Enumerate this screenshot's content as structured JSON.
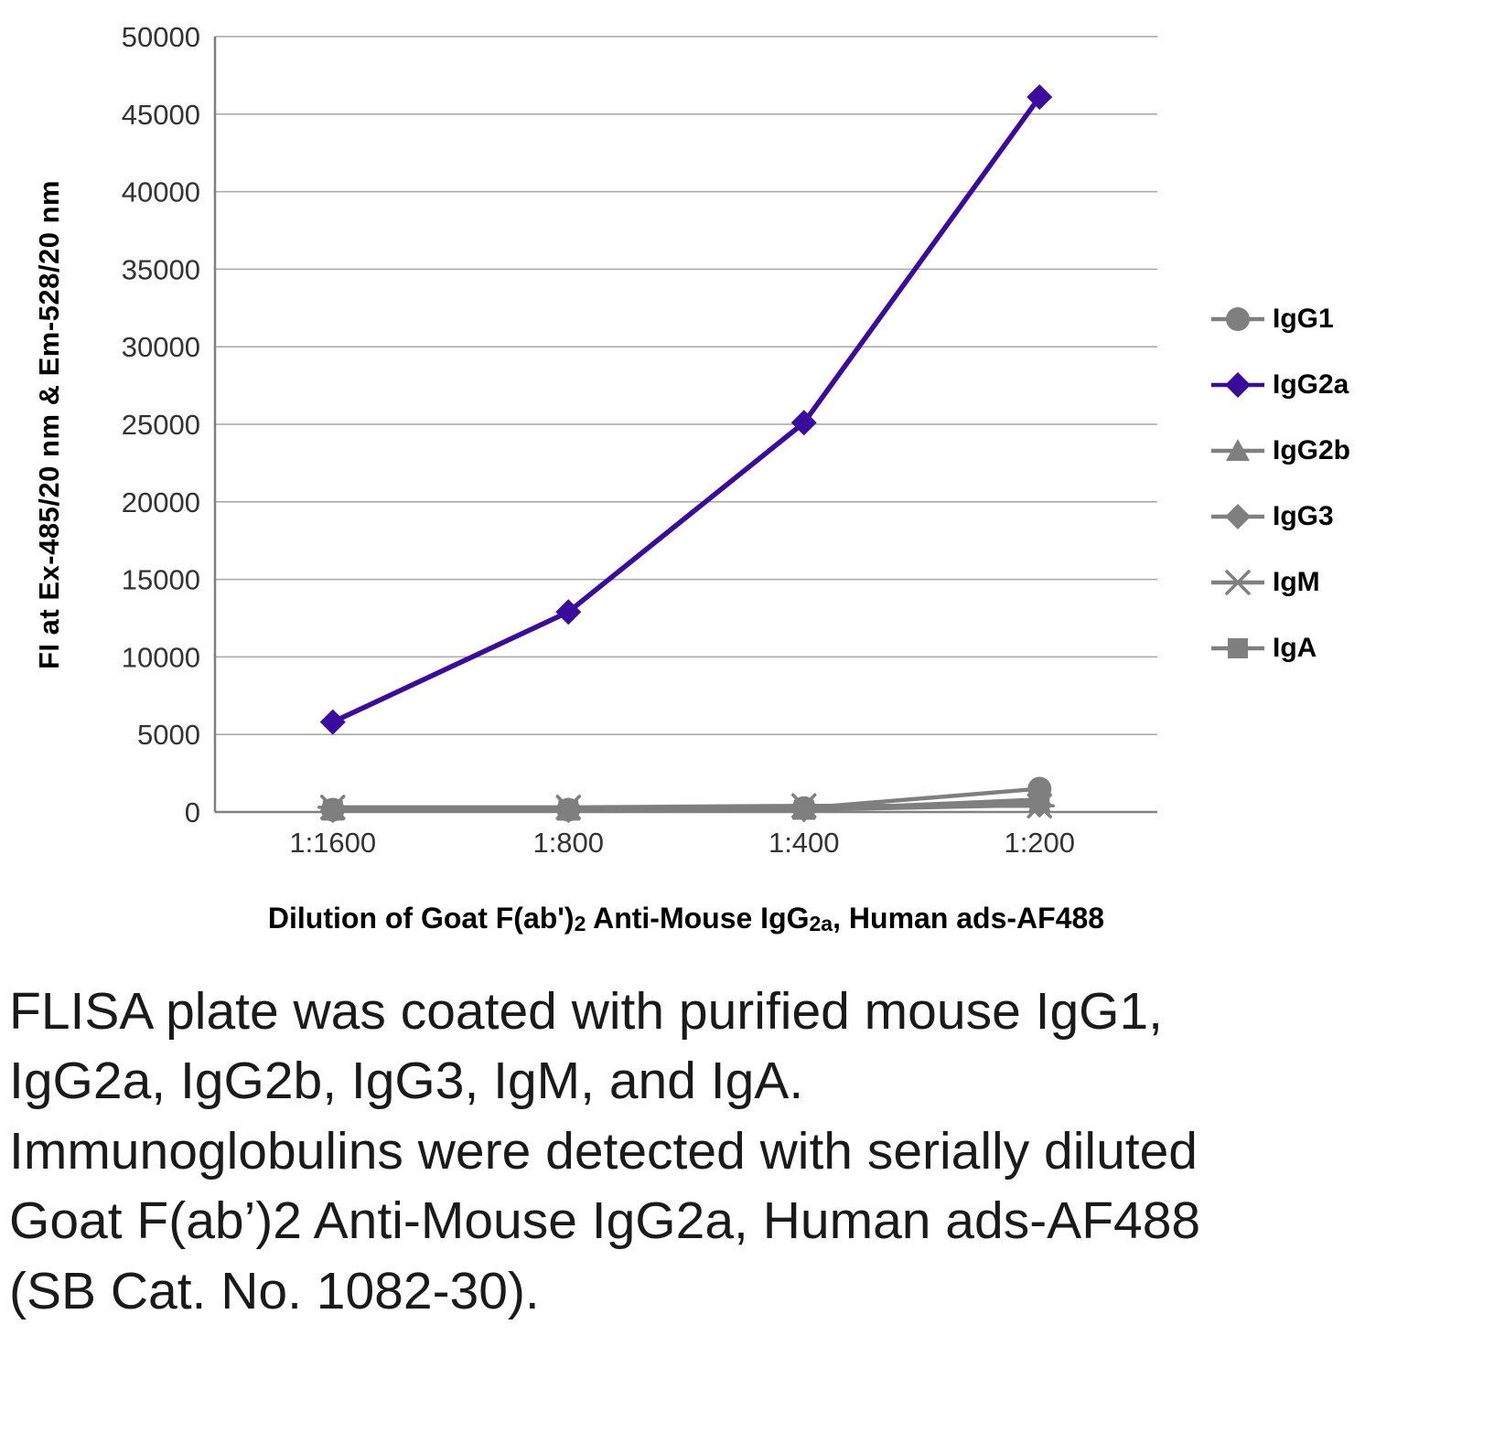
{
  "chart_data": {
    "type": "line",
    "title": "",
    "ylabel": "FI at Ex-485/20 nm & Em-528/20 nm",
    "xlabel": "Dilution of Goat F(ab')2 Anti-Mouse IgG2a, Human ads-AF488",
    "xlabel_parts": [
      {
        "text": "Dilution of Goat F(ab')",
        "sub": false
      },
      {
        "text": "2",
        "sub": true
      },
      {
        "text": " Anti-Mouse IgG",
        "sub": false
      },
      {
        "text": "2a",
        "sub": true
      },
      {
        "text": ", Human ads-AF488",
        "sub": false
      }
    ],
    "x_categories": [
      "1:1600",
      "1:800",
      "1:400",
      "1:200"
    ],
    "ylim": [
      0,
      50000
    ],
    "ytick_step": 5000,
    "grid": true,
    "legend_position": "right",
    "series": [
      {
        "name": "IgG1",
        "marker": "circle",
        "color": "#7F7F7F",
        "values": [
          150,
          150,
          250,
          1500
        ]
      },
      {
        "name": "IgG2a",
        "marker": "diamond",
        "color": "#3A0B9F",
        "values": [
          5800,
          12900,
          25100,
          46100
        ]
      },
      {
        "name": "IgG2b",
        "marker": "triangle",
        "color": "#7F7F7F",
        "values": [
          100,
          100,
          150,
          600
        ]
      },
      {
        "name": "IgG3",
        "marker": "diamond",
        "color": "#7F7F7F",
        "values": [
          100,
          100,
          150,
          450
        ]
      },
      {
        "name": "IgM",
        "marker": "asterisk",
        "color": "#7F7F7F",
        "values": [
          300,
          300,
          400,
          400
        ]
      },
      {
        "name": "IgA",
        "marker": "square",
        "color": "#7F7F7F",
        "values": [
          100,
          100,
          150,
          800
        ]
      }
    ]
  },
  "caption": "FLISA plate was coated with purified mouse IgG1, IgG2a, IgG2b, IgG3, IgM, and IgA. Immunoglobulins were detected with serially diluted Goat F(ab’)2 Anti-Mouse IgG2a, Human ads-AF488 (SB Cat. No. 1082-30).",
  "colors": {
    "accent_purple": "#3A0B9F",
    "series_gray": "#7F7F7F",
    "gridline": "#A6A6A6",
    "axis": "#808080",
    "tick_text": "#333333",
    "title_text": "#000000",
    "caption_text": "#1A1A1A"
  }
}
